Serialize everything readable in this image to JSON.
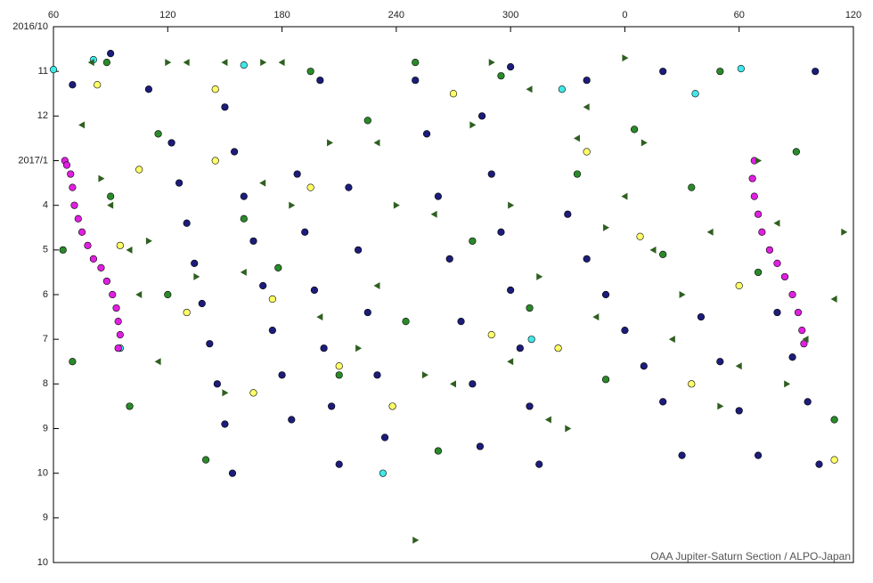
{
  "chart_data": {
    "type": "scatter",
    "annotation": "OAA Jupiter-Saturn Section / ALPO-Japan",
    "xlim": [
      60,
      480
    ],
    "xticks": [
      60,
      120,
      180,
      240,
      300,
      {
        "value": 360,
        "label": "0"
      },
      {
        "value": 420,
        "label": "60"
      },
      {
        "value": 480,
        "label": "120"
      }
    ],
    "ylim": [
      0,
      12
    ],
    "y_reversed": true,
    "yticks": [
      {
        "value": 0,
        "label": "2016/10"
      },
      {
        "value": 1,
        "label": "11"
      },
      {
        "value": 2,
        "label": "12"
      },
      {
        "value": 3,
        "label": "2017/1"
      },
      4,
      5,
      6,
      7,
      8,
      9,
      10,
      {
        "value": 11,
        "label": "9"
      },
      {
        "value": 12,
        "label": "10"
      }
    ],
    "series": [
      {
        "color": "#1c1c7a",
        "marker": "circle",
        "x": [
          122,
          126,
          130,
          134,
          138,
          142,
          146,
          150,
          154,
          150,
          155,
          160,
          165,
          170,
          175,
          180,
          185,
          188,
          192,
          197,
          202,
          206,
          210,
          215,
          220,
          225,
          230,
          234,
          250,
          256,
          262,
          268,
          274,
          280,
          284,
          285,
          290,
          295,
          300,
          305,
          310,
          315,
          330,
          340,
          350,
          360,
          370,
          380,
          390,
          400,
          410,
          420,
          430,
          440,
          448,
          456,
          462,
          70,
          90,
          110,
          200,
          300,
          340,
          380,
          460
        ],
        "values": [
          2.6,
          3.5,
          4.4,
          5.3,
          6.2,
          7.1,
          8.0,
          8.9,
          10,
          1.8,
          2.8,
          3.8,
          4.8,
          5.8,
          6.8,
          7.8,
          8.8,
          3.3,
          4.6,
          5.9,
          7.2,
          8.5,
          9.8,
          3.6,
          5.0,
          6.4,
          7.8,
          9.2,
          1.2,
          2.4,
          3.8,
          5.2,
          6.6,
          8.0,
          9.4,
          2,
          3.3,
          4.6,
          5.9,
          7.2,
          8.5,
          9.8,
          4.2,
          5.2,
          6.0,
          6.8,
          7.6,
          8.4,
          9.6,
          6.5,
          7.5,
          8.6,
          9.6,
          6.4,
          7.4,
          8.4,
          9.8,
          1.3,
          0.6,
          1.4,
          1.2,
          0.9,
          1.2,
          1.0,
          1.0
        ]
      },
      {
        "color": "#2a8a2a",
        "marker": "circle",
        "x": [
          65,
          70,
          90,
          100,
          115,
          120,
          140,
          160,
          178,
          195,
          210,
          225,
          245,
          262,
          280,
          295,
          310,
          335,
          350,
          365,
          380,
          395,
          410,
          430,
          450,
          470,
          88,
          250
        ],
        "values": [
          5.0,
          7.5,
          3.8,
          8.5,
          2.4,
          6.0,
          9.7,
          4.3,
          5.4,
          1.0,
          7.8,
          2.1,
          6.6,
          9.5,
          4.8,
          1.1,
          6.3,
          3.3,
          7.9,
          2.3,
          5.1,
          3.6,
          1.0,
          5.5,
          2.8,
          8.8,
          0.8,
          0.8
        ]
      },
      {
        "color": "#ffff66",
        "marker": "circle",
        "x": [
          83,
          95,
          105,
          130,
          145,
          165,
          175,
          195,
          210,
          238,
          270,
          290,
          325,
          340,
          368,
          395,
          420,
          470,
          145
        ],
        "values": [
          1.3,
          4.9,
          3.2,
          6.4,
          3.0,
          8.2,
          6.1,
          3.6,
          7.6,
          8.5,
          1.5,
          6.9,
          7.2,
          2.8,
          4.7,
          8.0,
          5.8,
          9.7,
          1.4
        ]
      },
      {
        "color": "#40e8e8",
        "marker": "circle",
        "x": [
          60,
          81,
          160,
          327,
          397,
          421,
          311,
          233,
          95
        ],
        "values": [
          0.96,
          0.74,
          0.86,
          1.4,
          1.5,
          0.94,
          7,
          10,
          7.2
        ]
      },
      {
        "color": "#e020e0",
        "marker": "circle",
        "x": [
          66,
          67,
          69,
          70,
          71,
          73,
          75,
          78,
          81,
          85,
          88,
          91,
          93,
          94,
          95,
          94,
          428,
          427,
          428,
          430,
          432,
          436,
          440,
          444,
          448,
          451,
          453,
          454
        ],
        "values": [
          3.0,
          3.1,
          3.3,
          3.6,
          4.0,
          4.3,
          4.6,
          4.9,
          5.2,
          5.4,
          5.7,
          6.0,
          6.3,
          6.6,
          6.9,
          7.2,
          3.0,
          3.4,
          3.8,
          4.2,
          4.6,
          5.0,
          5.3,
          5.6,
          6.0,
          6.4,
          6.8,
          7.1
        ]
      },
      {
        "color": "#2f5f20",
        "marker": "triangle-left",
        "x": [
          80,
          130,
          150,
          180,
          310,
          75,
          90,
          100,
          105,
          115,
          160,
          170,
          200,
          230,
          260,
          270,
          300,
          320,
          335,
          345,
          360,
          375,
          385,
          405,
          420,
          440,
          455,
          470,
          340,
          230
        ],
        "values": [
          0.8,
          0.8,
          0.8,
          0.8,
          1.4,
          2.2,
          4.0,
          5.0,
          6.0,
          7.5,
          5.5,
          3.5,
          6.5,
          5.8,
          4.2,
          8.0,
          7.5,
          8.8,
          2.5,
          6.5,
          3.8,
          5.0,
          7.0,
          4.6,
          7.6,
          4.4,
          7.0,
          6.1,
          1.8,
          2.6
        ]
      },
      {
        "color": "#2f5f20",
        "marker": "triangle-right",
        "x": [
          120,
          170,
          290,
          360,
          85,
          110,
          135,
          185,
          205,
          220,
          240,
          255,
          280,
          300,
          315,
          330,
          350,
          370,
          390,
          410,
          430,
          445,
          475,
          150,
          250
        ],
        "values": [
          0.8,
          0.8,
          0.8,
          0.7,
          3.4,
          4.8,
          5.6,
          4.0,
          2.6,
          7.2,
          4.0,
          7.8,
          2.2,
          4.0,
          5.6,
          9.0,
          4.5,
          2.6,
          6.0,
          8.5,
          3.0,
          8.0,
          4.6,
          8.2,
          11.5
        ]
      }
    ]
  }
}
